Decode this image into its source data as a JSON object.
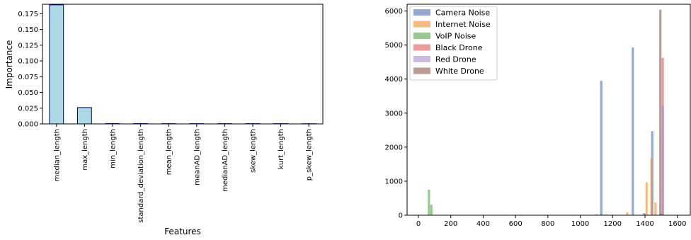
{
  "chart_data": [
    {
      "type": "bar",
      "title": "",
      "xlabel": "Features",
      "ylabel": "Importance",
      "categories": [
        "median_length",
        "max_length",
        "min_length",
        "standard_deviation_length",
        "mean_length",
        "meanAD_length",
        "medianAD_length",
        "skew_length",
        "kurt_length",
        "p_skew_length"
      ],
      "values": [
        0.189,
        0.026,
        0.0005,
        0.0005,
        0.0004,
        0.0004,
        0.0004,
        0.0004,
        0.0004,
        0.0003
      ],
      "ylim": [
        0,
        0.19
      ],
      "yticks": [
        "0.000",
        "0.025",
        "0.050",
        "0.075",
        "0.100",
        "0.125",
        "0.150",
        "0.175"
      ],
      "grid": false,
      "bar_color": "#add8e6",
      "edge_color": "#00008b"
    },
    {
      "type": "bar",
      "title": "",
      "xlabel": "",
      "ylabel": "",
      "xlim": [
        -70,
        1680
      ],
      "ylim": [
        0,
        6200
      ],
      "xticks": [
        "0",
        "200",
        "400",
        "600",
        "800",
        "1000",
        "1200",
        "1400",
        "1600"
      ],
      "yticks": [
        "0",
        "1000",
        "2000",
        "3000",
        "4000",
        "5000",
        "6000"
      ],
      "grid": false,
      "legend": "top-left",
      "series": [
        {
          "name": "Camera Noise",
          "color": "#4c72b0",
          "bins": [
            [
              1130,
              3950
            ],
            [
              1325,
              4930
            ],
            [
              1445,
              2470
            ],
            [
              1395,
              60
            ],
            [
              1500,
              50
            ]
          ]
        },
        {
          "name": "Internet Noise",
          "color": "#f28e2b",
          "bins": [
            [
              1290,
              80
            ],
            [
              1410,
              960
            ],
            [
              1440,
              1680
            ],
            [
              1465,
              370
            ],
            [
              1500,
              40
            ]
          ]
        },
        {
          "name": "VoIP Noise",
          "color": "#59a14f",
          "bins": [
            [
              65,
              750
            ],
            [
              80,
              310
            ],
            [
              1100,
              30
            ],
            [
              1130,
              40
            ],
            [
              1160,
              25
            ],
            [
              1190,
              15
            ]
          ]
        },
        {
          "name": "Black Drone",
          "color": "#e15759",
          "bins": [
            [
              1510,
              4620
            ]
          ]
        },
        {
          "name": "Red Drone",
          "color": "#a98ecf",
          "bins": [
            [
              1510,
              3210
            ]
          ]
        },
        {
          "name": "White Drone",
          "color": "#8c564b",
          "bins": [
            [
              1495,
              6040
            ]
          ]
        }
      ]
    }
  ]
}
